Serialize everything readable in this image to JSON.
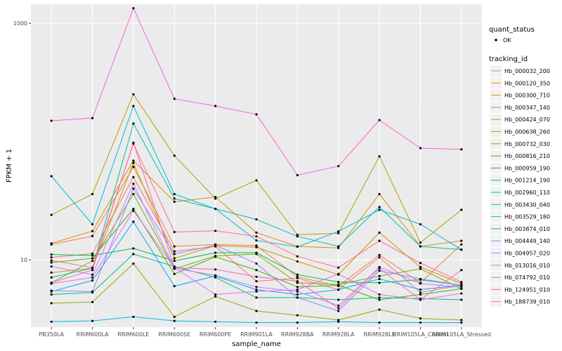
{
  "chart_data": {
    "type": "line",
    "xlabel": "sample_name",
    "ylabel": "FPKM + 1",
    "y_scale": "log10",
    "ylim": [
      2.7,
      1450
    ],
    "grid": true,
    "legend_position": "right",
    "categories": [
      "PB350LA",
      "RRIM600LA",
      "RRIM600LE",
      "RRIM600SE",
      "RRIM600PE",
      "RRIM901LA",
      "RRIM928BA",
      "RRIM928LA",
      "RRIM928LE",
      "RRIM105LA_Control",
      "RRIM105LA_Stressed"
    ],
    "y_ticks": [
      {
        "value": 10,
        "label": "10"
      },
      {
        "value": 1000,
        "label": "1000"
      }
    ],
    "quant_status_legend": {
      "title": "quant_status",
      "entries": [
        "OK"
      ]
    },
    "legend_title": "tracking_id",
    "series": [
      {
        "name": "Hb_000032_200",
        "color": "#F8766D",
        "values": [
          10.5,
          11.3,
          50,
          11.8,
          13,
          6.6,
          7,
          5.6,
          10.5,
          5.3,
          6.1
        ]
      },
      {
        "name": "Hb_000120_350",
        "color": "#EE8044",
        "values": [
          13.5,
          15.9,
          61,
          13,
          13.5,
          13.2,
          7.2,
          6,
          11,
          6.4,
          13.5
        ]
      },
      {
        "name": "Hb_000300_710",
        "color": "#DB8E00",
        "values": [
          13.8,
          17.5,
          69,
          31,
          34,
          17,
          13,
          12.6,
          36,
          13,
          14.5
        ]
      },
      {
        "name": "Hb_000347_140",
        "color": "#C79800",
        "values": [
          7.8,
          8.5,
          66,
          10.3,
          13.2,
          12.8,
          9.7,
          7.5,
          17,
          8.7,
          6.3
        ]
      },
      {
        "name": "Hb_000424_070",
        "color": "#AEA200",
        "values": [
          24,
          36,
          251,
          76,
          33,
          47,
          16.3,
          16.8,
          75,
          14,
          26.5
        ]
      },
      {
        "name": "Hb_000638_260",
        "color": "#96A900",
        "values": [
          4.3,
          4.4,
          9.3,
          3.3,
          4.9,
          3.7,
          3.4,
          3.1,
          3.8,
          3.2,
          3.1
        ]
      },
      {
        "name": "Hb_000732_030",
        "color": "#79AF00",
        "values": [
          6.4,
          9.8,
          36,
          8.4,
          10.8,
          11.2,
          6.4,
          6.2,
          7.3,
          8.4,
          5.7
        ]
      },
      {
        "name": "Hb_000816_210",
        "color": "#39B600",
        "values": [
          9.5,
          10.3,
          27,
          7.6,
          10.6,
          8.2,
          5.9,
          6.1,
          4.6,
          5.1,
          5.7
        ]
      },
      {
        "name": "Hb_000959_190",
        "color": "#00BB4E",
        "values": [
          11.1,
          10.9,
          12.5,
          9.8,
          11.5,
          11.5,
          7.5,
          6.5,
          6.4,
          6.8,
          6.1
        ]
      },
      {
        "name": "Hb_001214_190",
        "color": "#00BF7D",
        "values": [
          5.1,
          5.3,
          11.2,
          8.8,
          7.1,
          4.8,
          4.8,
          4.6,
          4.8,
          4.7,
          4.6
        ]
      },
      {
        "name": "Hb_002960_110",
        "color": "#00C0A0",
        "values": [
          7.1,
          8.5,
          142,
          33,
          27,
          22,
          15.8,
          13,
          28,
          13,
          12.2
        ]
      },
      {
        "name": "Hb_003430_040",
        "color": "#00BCD8",
        "values": [
          51,
          20,
          200,
          36,
          27,
          14.6,
          12.9,
          17.4,
          26.5,
          20,
          12.2
        ]
      },
      {
        "name": "Hb_003529_180",
        "color": "#00B5EE",
        "values": [
          3.0,
          3.05,
          3.3,
          3.05,
          3.0,
          2.95,
          2.95,
          3.0,
          2.95,
          2.95,
          2.95
        ]
      },
      {
        "name": "Hb_003874_010",
        "color": "#00A5FF",
        "values": [
          5.4,
          6.7,
          21,
          6,
          7.3,
          5.6,
          5.1,
          5.6,
          6.9,
          5.6,
          6.1
        ]
      },
      {
        "name": "Hb_004449_140",
        "color": "#8C8AFF",
        "values": [
          5.5,
          5.4,
          40,
          11.2,
          13.3,
          9.3,
          4.8,
          3.7,
          8.1,
          6.9,
          6.1
        ]
      },
      {
        "name": "Hb_004957_020",
        "color": "#C77CFF",
        "values": [
          8.8,
          7.5,
          44,
          8.5,
          7.4,
          5.9,
          5.4,
          4.1,
          8.7,
          6.3,
          5.9
        ]
      },
      {
        "name": "Hb_013016_010",
        "color": "#E76BF3",
        "values": [
          6.3,
          7.1,
          26,
          8.6,
          5.1,
          5.4,
          5.6,
          7.6,
          5.1,
          4.6,
          5.2
        ]
      },
      {
        "name": "Hb_074792_010",
        "color": "#FA62DB",
        "values": [
          150,
          158,
          1340,
          230,
          200,
          170,
          52,
          62,
          152,
          88,
          86
        ]
      },
      {
        "name": "Hb_124951_010",
        "color": "#FF62BC",
        "values": [
          6.4,
          8.2,
          98,
          8.6,
          8.3,
          7.2,
          6.6,
          3.9,
          8.5,
          4.6,
          8.2
        ]
      },
      {
        "name": "Hb_188739_010",
        "color": "#FF6C91",
        "values": [
          9.9,
          8.6,
          96,
          17.2,
          17.6,
          15.8,
          10.7,
          8.6,
          14.5,
          9.4,
          6.5
        ]
      }
    ]
  }
}
